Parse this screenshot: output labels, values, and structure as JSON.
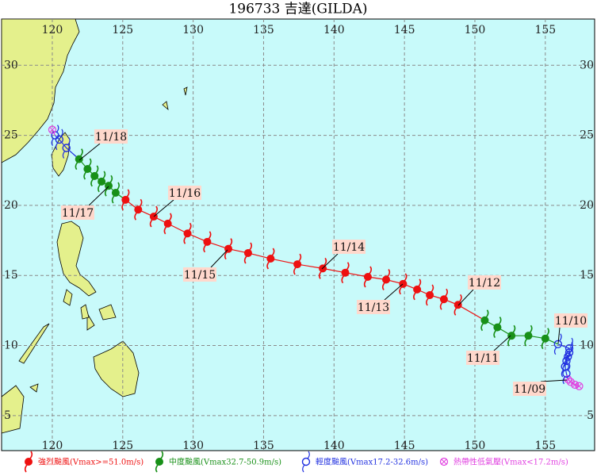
{
  "title": "196733 吉達(GILDA)",
  "map": {
    "lonlim": [
      116.4,
      158.5
    ],
    "latlim": [
      2.5,
      33.3
    ],
    "lon_ticks": [
      120,
      125,
      130,
      135,
      140,
      145,
      150,
      155
    ],
    "lat_ticks": [
      5,
      10,
      15,
      20,
      25,
      30
    ],
    "water_color": "#c8fafa",
    "land_color": "#e4f08c",
    "grid_color": "#8a8a8a"
  },
  "track": [
    {
      "color": "#e040e0",
      "points": [
        [
          157.4,
          7.1
        ],
        [
          157.1,
          7.2
        ],
        [
          156.8,
          7.4
        ],
        [
          156.6,
          7.6
        ]
      ]
    },
    {
      "color": "#2030e0",
      "points": [
        [
          156.5,
          8.0
        ],
        [
          156.4,
          8.5
        ],
        [
          156.5,
          8.9
        ],
        [
          156.6,
          9.2
        ],
        [
          156.7,
          9.5
        ],
        [
          156.7,
          9.8
        ],
        [
          155.9,
          10.1
        ]
      ]
    },
    {
      "color": "#189018",
      "points": [
        [
          155.0,
          10.5
        ],
        [
          153.8,
          10.7
        ],
        [
          152.6,
          10.7
        ],
        [
          151.6,
          11.3
        ],
        [
          150.7,
          11.8
        ]
      ]
    },
    {
      "color": "#ee1010",
      "points": [
        [
          148.8,
          12.9
        ],
        [
          147.8,
          13.3
        ],
        [
          146.8,
          13.6
        ],
        [
          145.9,
          14.0
        ],
        [
          144.9,
          14.4
        ],
        [
          143.7,
          14.7
        ],
        [
          142.4,
          14.9
        ],
        [
          140.8,
          15.2
        ],
        [
          139.2,
          15.5
        ],
        [
          137.4,
          15.8
        ],
        [
          135.5,
          16.2
        ],
        [
          133.9,
          16.6
        ],
        [
          132.5,
          16.9
        ],
        [
          131.0,
          17.4
        ],
        [
          129.6,
          18.0
        ],
        [
          128.2,
          18.7
        ],
        [
          127.2,
          19.2
        ],
        [
          126.1,
          19.7
        ],
        [
          125.2,
          20.4
        ]
      ]
    },
    {
      "color": "#189018",
      "points": [
        [
          124.5,
          20.9
        ],
        [
          124.0,
          21.4
        ],
        [
          123.5,
          21.7
        ],
        [
          123.0,
          22.1
        ],
        [
          122.5,
          22.6
        ],
        [
          121.9,
          23.3
        ]
      ]
    },
    {
      "color": "#2030e0",
      "points": [
        [
          121.0,
          24.1
        ],
        [
          120.5,
          24.7
        ],
        [
          120.2,
          25.0
        ]
      ]
    },
    {
      "color": "#e040e0",
      "points": [
        [
          120.0,
          25.4
        ]
      ]
    }
  ],
  "date_labels": [
    "11/18",
    "11/17",
    "11/16",
    "11/15",
    "11/14",
    "11/13",
    "11/12",
    "11/11",
    "11/10",
    "11/09"
  ],
  "legend": [
    {
      "label": "強烈颱風(Vmax>=51.0m/s)",
      "color": "#ee1010"
    },
    {
      "label": "中度颱風(Vmax32.7-50.9m/s)",
      "color": "#189018"
    },
    {
      "label": "輕度颱風(Vmax17.2-32.6m/s)",
      "color": "#2030e0"
    },
    {
      "label": "熱帶性低氣壓(Vmax<17.2m/s)",
      "color": "#e040e0"
    }
  ]
}
